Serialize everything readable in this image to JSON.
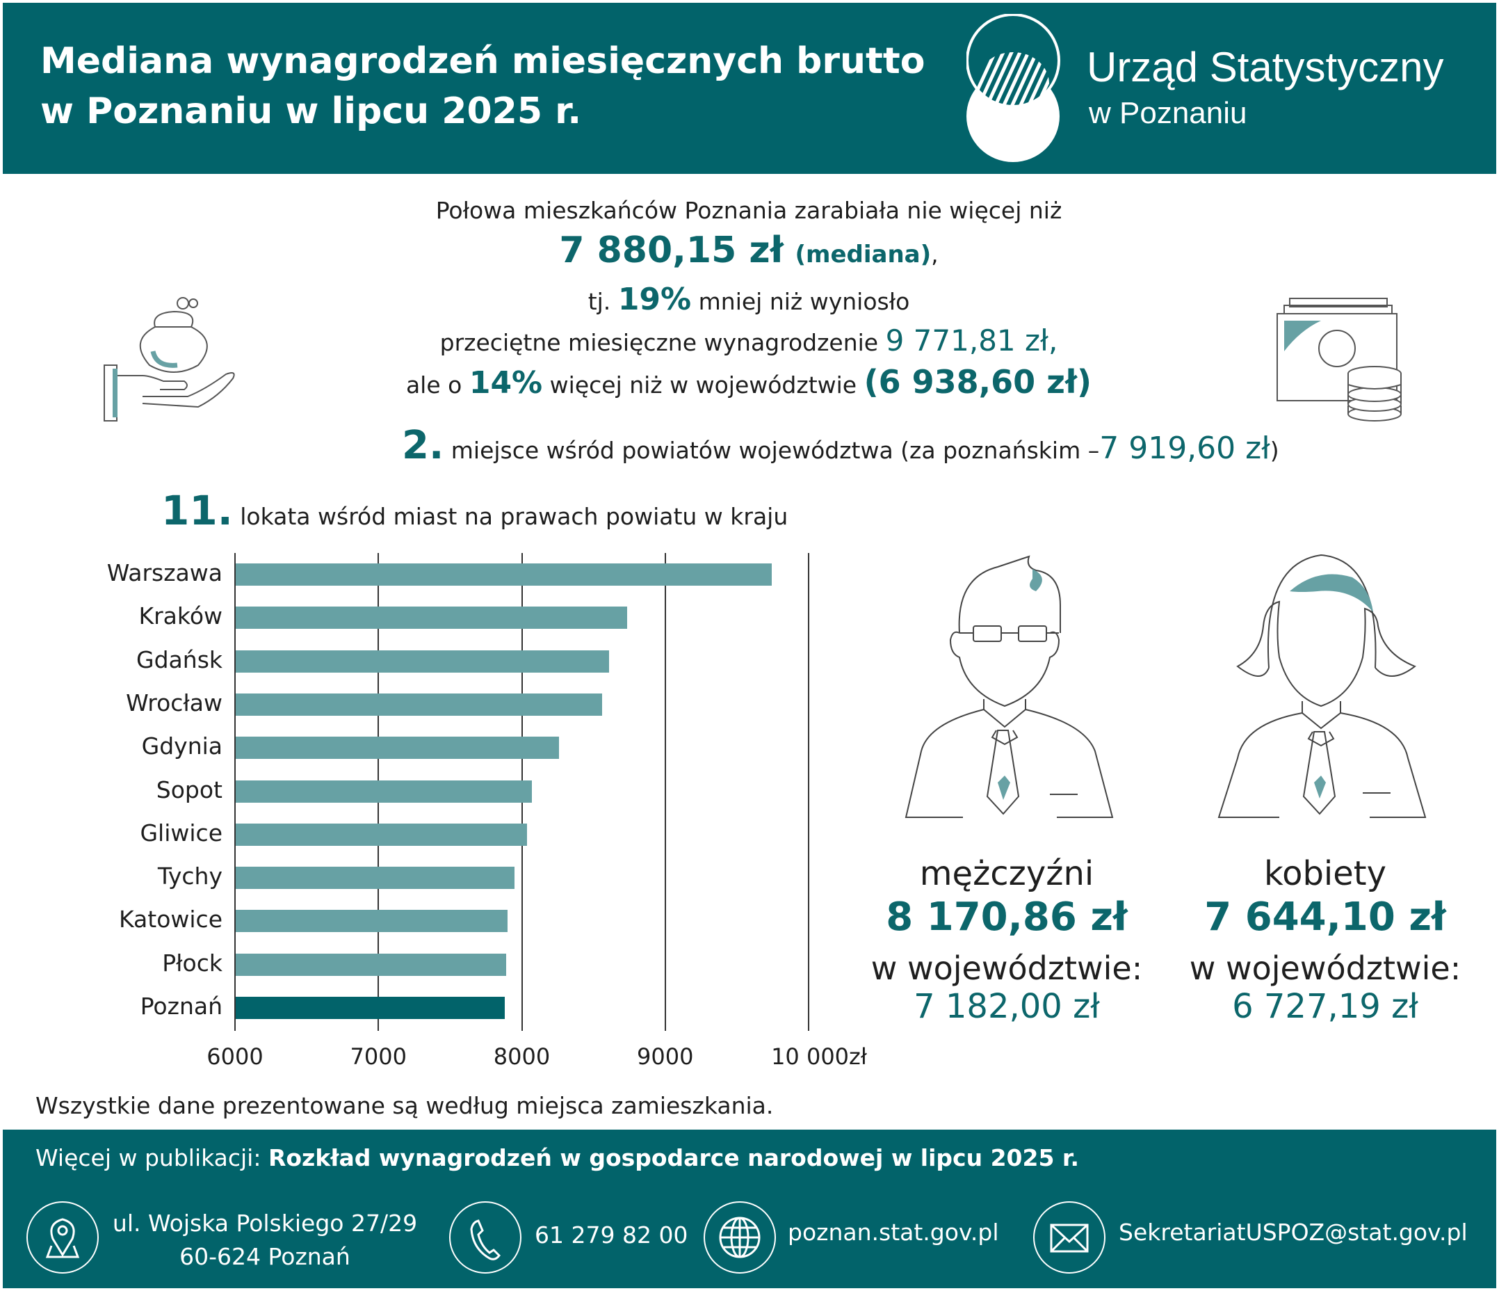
{
  "header": {
    "title_line1": "Mediana wynagrodzeń miesięcznych brutto",
    "title_line2": "w Poznaniu w lipcu 2025 r.",
    "org_name": "Urząd Statystyczny",
    "org_city": "w Poznaniu"
  },
  "summary": {
    "line1": "Połowa mieszkańców Poznania zarabiała nie więcej niż",
    "median_value": "7 880,15 zł",
    "median_label": "(mediana)",
    "median_suffix": ",",
    "line3_prefix": "tj.",
    "pct_less": "19%",
    "line3_suffix": "mniej niż wyniosło",
    "line4_text": "przeciętne miesięczne wynagrodzenie",
    "avg_value": "9 771,81 zł,",
    "line5_prefix": "ale o",
    "pct_more": "14%",
    "line5_mid": "więcej niż w województwie",
    "voiv_value": "(6 938,60 zł)",
    "rank_powiat": "2.",
    "rank_powiat_text": "miejsce wśród powiatów województwa (za poznańskim –",
    "rank_powiat_value": "7 919,60 zł",
    "rank_powiat_close": ")",
    "rank_city": "11.",
    "rank_city_text": "lokata wśród miast na prawach powiatu w kraju"
  },
  "chart_data": {
    "type": "bar",
    "orientation": "horizontal",
    "categories": [
      "Warszawa",
      "Kraków",
      "Gdańsk",
      "Wrocław",
      "Gdynia",
      "Sopot",
      "Gliwice",
      "Tychy",
      "Katowice",
      "Płock",
      "Poznań"
    ],
    "values": [
      9745,
      8733,
      8607,
      8560,
      8261,
      8070,
      8038,
      7950,
      7900,
      7891,
      7880.15
    ],
    "xlim": [
      6000,
      10000
    ],
    "tick_labels": [
      "6000",
      "7000",
      "8000",
      "9000",
      "10 000zł"
    ],
    "grid": true,
    "colors": {
      "default": "#67a1a4",
      "highlight": "#02636a"
    },
    "highlight": "Poznań"
  },
  "gender": {
    "men": {
      "label": "mężczyźni",
      "value": "8 170,86 zł",
      "voiv_label": "w województwie:",
      "voiv_value": "7 182,00 zł"
    },
    "women": {
      "label": "kobiety",
      "value": "7 644,10 zł",
      "voiv_label": "w województwie:",
      "voiv_value": "6 727,19 zł"
    }
  },
  "footnote": "Wszystkie dane prezentowane są według miejsca zamieszkania.",
  "footer": {
    "pub_prefix": "Więcej w publikacji:",
    "pub_title": "Rozkład wynagrodzeń w gospodarce narodowej w lipcu 2025 r.",
    "address_line1": "ul. Wojska Polskiego 27/29",
    "address_line2": "60-624 Poznań",
    "phone": "61 279 82 00",
    "website": "poznan.stat.gov.pl",
    "email": "SekretariatUSPOZ@stat.gov.pl"
  },
  "colors": {
    "brand": "#02636a",
    "bar": "#67a1a4"
  }
}
